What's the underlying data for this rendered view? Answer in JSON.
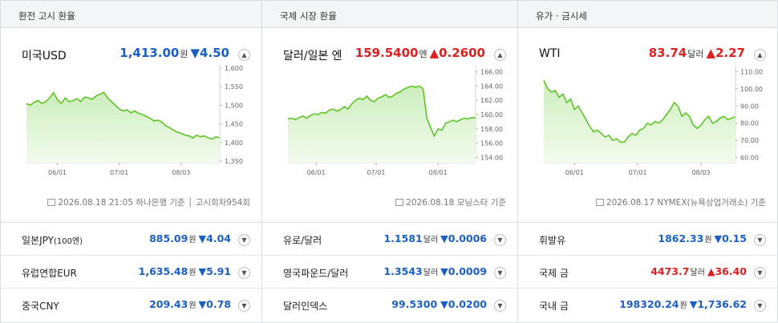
{
  "columns": [
    {
      "header": "환전 고시 환율",
      "main": {
        "name": "미국USD",
        "value": "1,413.00",
        "unit": "원",
        "direction": "down",
        "change": "▼4.50",
        "source_date": "2026.08.18 21:05",
        "source": "하나은행 기준",
        "source_extra": "고시회차954회",
        "toggle_icon": "chevron-up-icon"
      },
      "rows": [
        {
          "name": "일본JPY",
          "name_suffix": "(100엔)",
          "value": "885.09",
          "unit": "원",
          "direction": "down",
          "change": "▼4.04",
          "toggle_icon": "chevron-down-icon"
        },
        {
          "name": "유럽연합EUR",
          "name_suffix": "",
          "value": "1,635.48",
          "unit": "원",
          "direction": "down",
          "change": "▼5.91",
          "toggle_icon": "chevron-down-icon"
        },
        {
          "name": "중국CNY",
          "name_suffix": "",
          "value": "209.43",
          "unit": "원",
          "direction": "down",
          "change": "▼0.78",
          "toggle_icon": "chevron-down-icon"
        }
      ]
    },
    {
      "header": "국제 시장 환율",
      "main": {
        "name": "달러/일본 엔",
        "value": "159.5400",
        "unit": "엔",
        "direction": "up",
        "change": "▲0.2600",
        "source_date": "2026.08.18",
        "source": "모닝스타 기준",
        "source_extra": "",
        "toggle_icon": "chevron-up-icon"
      },
      "rows": [
        {
          "name": "유로/달러",
          "name_suffix": "",
          "value": "1.1581",
          "unit": "달러",
          "direction": "down",
          "change": "▼0.0006",
          "toggle_icon": "chevron-down-icon"
        },
        {
          "name": "영국파운드/달러",
          "name_suffix": "",
          "value": "1.3543",
          "unit": "달러",
          "direction": "down",
          "change": "▼0.0009",
          "toggle_icon": "chevron-down-icon"
        },
        {
          "name": "달러인덱스",
          "name_suffix": "",
          "value": "99.5300",
          "unit": "",
          "direction": "down",
          "change": "▼0.0200",
          "toggle_icon": "chevron-down-icon"
        }
      ]
    },
    {
      "header": "유가 · 금시세",
      "main": {
        "name": "WTI",
        "value": "83.74",
        "unit": "달러",
        "direction": "up",
        "change": "▲2.27",
        "source_date": "2026.08.17",
        "source": "NYMEX(뉴욕상업거래소) 기준",
        "source_extra": "",
        "toggle_icon": "chevron-up-icon"
      },
      "rows": [
        {
          "name": "휘발유",
          "name_suffix": "",
          "value": "1862.33",
          "unit": "원",
          "direction": "down",
          "change": "▼0.15",
          "toggle_icon": "chevron-down-icon"
        },
        {
          "name": "국제 금",
          "name_suffix": "",
          "value": "4473.7",
          "unit": "달러",
          "direction": "up",
          "change": "▲36.40",
          "toggle_icon": "chevron-down-icon"
        },
        {
          "name": "국내 금",
          "name_suffix": "",
          "value": "198320.24",
          "unit": "원",
          "direction": "down",
          "change": "▼1,736.62",
          "toggle_icon": "chevron-down-icon"
        }
      ]
    }
  ],
  "colors": {
    "down": "#1a5fc8",
    "up": "#e0201f",
    "line": "#52c41a",
    "fill_top": "#cdeebd",
    "fill_bottom": "#f3fbee"
  },
  "chart_data": [
    {
      "type": "area",
      "title": "미국USD",
      "x_ticks": [
        "06/01",
        "07/01",
        "08/03"
      ],
      "x_tick_pos": [
        0.16,
        0.48,
        0.8
      ],
      "y_ticks": [
        "1,600",
        "1,550",
        "1,500",
        "1,450",
        "1,400",
        "1,350"
      ],
      "ylim": [
        1350,
        1600
      ],
      "values": [
        1505,
        1500,
        1508,
        1513,
        1505,
        1510,
        1520,
        1534,
        1515,
        1505,
        1520,
        1510,
        1512,
        1518,
        1510,
        1522,
        1520,
        1516,
        1525,
        1530,
        1535,
        1520,
        1510,
        1500,
        1490,
        1485,
        1488,
        1480,
        1485,
        1478,
        1475,
        1470,
        1465,
        1458,
        1460,
        1455,
        1445,
        1440,
        1433,
        1428,
        1425,
        1420,
        1418,
        1412,
        1420,
        1415,
        1418,
        1412,
        1410,
        1415,
        1413
      ]
    },
    {
      "type": "area",
      "title": "달러/일본 엔",
      "x_ticks": [
        "06/01",
        "07/01",
        "08/01"
      ],
      "x_tick_pos": [
        0.15,
        0.47,
        0.8
      ],
      "y_ticks": [
        "166.00",
        "164.00",
        "162.00",
        "160.00",
        "158.00",
        "156.00",
        "154.00"
      ],
      "ylim": [
        153.5,
        166.5
      ],
      "values": [
        159.4,
        159.5,
        159.3,
        159.6,
        159.8,
        159.5,
        159.9,
        160.1,
        160.0,
        160.3,
        160.2,
        160.6,
        160.8,
        160.5,
        160.7,
        161.1,
        160.8,
        161.5,
        162.0,
        162.3,
        162.1,
        162.6,
        162.0,
        161.8,
        162.3,
        162.5,
        162.8,
        162.4,
        162.6,
        163.0,
        163.2,
        163.6,
        163.8,
        164.0,
        163.8,
        164.0,
        163.6,
        159.5,
        158.2,
        157.0,
        158.0,
        157.8,
        158.8,
        159.0,
        159.2,
        159.0,
        159.3,
        159.5,
        159.4,
        159.6,
        159.54
      ]
    },
    {
      "type": "area",
      "title": "WTI",
      "x_ticks": [
        "06/01",
        "07/01",
        "08/03"
      ],
      "x_tick_pos": [
        0.16,
        0.49,
        0.82
      ],
      "y_ticks": [
        "110.00",
        "100.00",
        "90.00",
        "80.00",
        "70.00",
        "60.00"
      ],
      "ylim": [
        58,
        112
      ],
      "values": [
        105,
        100,
        98,
        99,
        95,
        97,
        92,
        94,
        88,
        90,
        86,
        82,
        78,
        75,
        76,
        74,
        72,
        73,
        70,
        71,
        69,
        69,
        72,
        74,
        73,
        76,
        77,
        80,
        79,
        81,
        80,
        82,
        85,
        88,
        92,
        90,
        84,
        86,
        84,
        79,
        77,
        79,
        82,
        84,
        80,
        81,
        83,
        84,
        82,
        83,
        83.74
      ]
    }
  ]
}
